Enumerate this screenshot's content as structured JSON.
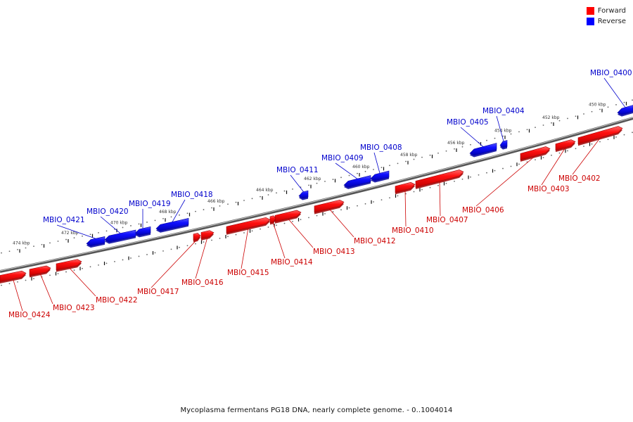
{
  "legend": {
    "forward_label": "Forward",
    "reverse_label": "Reverse",
    "forward_color": "#ff0000",
    "reverse_color": "#0000ff"
  },
  "caption": "Mycoplasma fermentans PG18 DNA, nearly complete genome. - 0..1004014",
  "tick_labels": [
    "450 kbp",
    "452 kbp",
    "454 kbp",
    "456 kbp",
    "458 kbp",
    "460 kbp",
    "462 kbp",
    "464 kbp",
    "466 kbp",
    "468 kbp",
    "470 kbp",
    "472 kbp",
    "474 kbp"
  ],
  "genes": [
    {
      "name": "MBIO_0400",
      "strand": "reverse"
    },
    {
      "name": "MBIO_0402",
      "strand": "forward"
    },
    {
      "name": "MBIO_0403",
      "strand": "forward"
    },
    {
      "name": "MBIO_0404",
      "strand": "reverse"
    },
    {
      "name": "MBIO_0405",
      "strand": "reverse"
    },
    {
      "name": "MBIO_0406",
      "strand": "forward"
    },
    {
      "name": "MBIO_0407",
      "strand": "forward"
    },
    {
      "name": "MBIO_0408",
      "strand": "reverse"
    },
    {
      "name": "MBIO_0409",
      "strand": "reverse"
    },
    {
      "name": "MBIO_0410",
      "strand": "forward"
    },
    {
      "name": "MBIO_0411",
      "strand": "reverse"
    },
    {
      "name": "MBIO_0412",
      "strand": "forward"
    },
    {
      "name": "MBIO_0413",
      "strand": "forward"
    },
    {
      "name": "MBIO_0414",
      "strand": "forward"
    },
    {
      "name": "MBIO_0415",
      "strand": "forward"
    },
    {
      "name": "MBIO_0416",
      "strand": "forward"
    },
    {
      "name": "MBIO_0417",
      "strand": "forward"
    },
    {
      "name": "MBIO_0418",
      "strand": "reverse"
    },
    {
      "name": "MBIO_0419",
      "strand": "reverse"
    },
    {
      "name": "MBIO_0420",
      "strand": "reverse"
    },
    {
      "name": "MBIO_0421",
      "strand": "reverse"
    },
    {
      "name": "MBIO_0422",
      "strand": "forward"
    },
    {
      "name": "MBIO_0423",
      "strand": "forward"
    },
    {
      "name": "MBIO_0424",
      "strand": "forward"
    }
  ]
}
